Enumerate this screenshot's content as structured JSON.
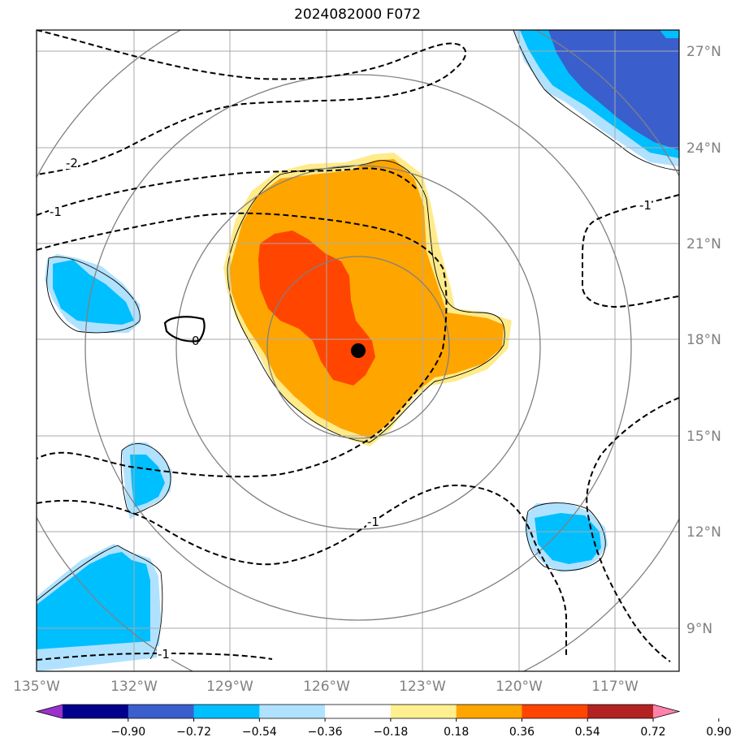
{
  "title": "2024082000 F072",
  "map": {
    "lon_labels": [
      "135°W",
      "132°W",
      "129°W",
      "126°W",
      "123°W",
      "120°W",
      "117°W"
    ],
    "lat_labels": [
      "27°N",
      "24°N",
      "21°N",
      "18°N",
      "15°N",
      "12°N",
      "9°N"
    ],
    "storm_center": {
      "lon": "125°W",
      "lat": "17.6°N"
    },
    "contour_labels": [
      "-2",
      "-1",
      "0",
      "-1",
      "-1",
      "-1"
    ]
  },
  "colorbar": {
    "ticks": [
      "−0.90",
      "−0.72",
      "−0.54",
      "−0.36",
      "−0.18",
      "0.18",
      "0.36",
      "0.54",
      "0.72",
      "0.90"
    ],
    "colors": [
      "#9932cc",
      "#00008b",
      "#3a5fcd",
      "#00bfff",
      "#b0e2ff",
      "#ffffff",
      "#fff08f",
      "#ffa500",
      "#ff4500",
      "#b22222",
      "#ff82ab"
    ]
  },
  "colors": {
    "light_blue": "#b0e2ff",
    "blue": "#00bfff",
    "royal_blue": "#3a5fcd",
    "yellow": "#ffeb8a",
    "orange": "#ffa500",
    "red_orange": "#ff4500",
    "grid": "#aaaaaa",
    "ring": "#808080"
  }
}
